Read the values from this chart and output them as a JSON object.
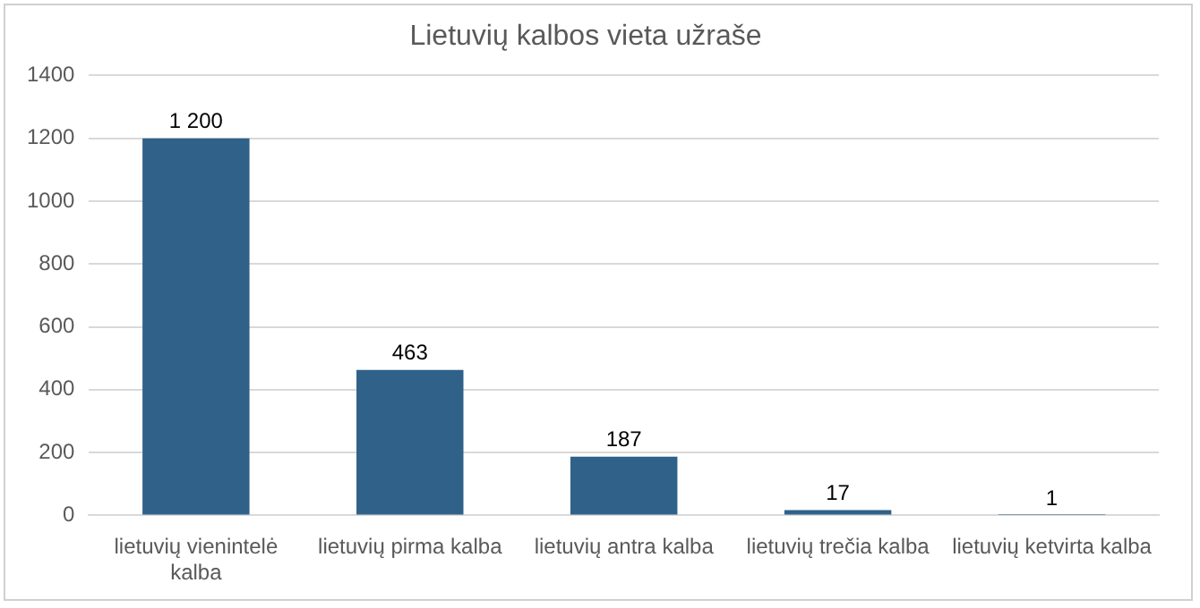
{
  "chart_data": {
    "type": "bar",
    "title": "Lietuvių kalbos vieta užraše",
    "categories": [
      "lietuvių vienintelė kalba",
      "lietuvių pirma kalba",
      "lietuvių antra kalba",
      "lietuvių trečia kalba",
      "lietuvių ketvirta kalba"
    ],
    "values": [
      1200,
      463,
      187,
      17,
      1
    ],
    "value_labels": [
      "1 200",
      "463",
      "187",
      "17",
      "1"
    ],
    "color": "#2f6189",
    "ylim": [
      0,
      1400
    ],
    "yticks": [
      0,
      200,
      400,
      600,
      800,
      1000,
      1200,
      1400
    ],
    "grid": "y",
    "legend": false
  }
}
